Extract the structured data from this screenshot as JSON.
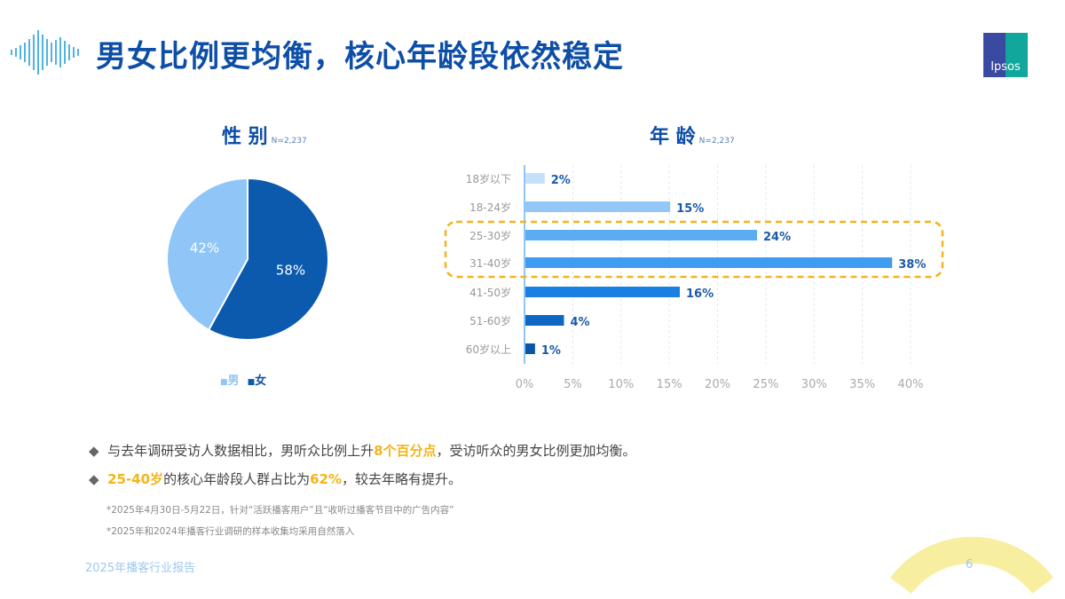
{
  "header": {
    "title": "男女比例更均衡，核心年龄段依然稳定",
    "logo_text": "Ipsos",
    "icon": "soundwave-icon"
  },
  "chart_data": [
    {
      "type": "pie",
      "title": "性 别",
      "note": "N=2,237",
      "categories": [
        "男",
        "女"
      ],
      "values": [
        42,
        58
      ],
      "labels": [
        "42%",
        "58%"
      ],
      "colors": [
        "#90c5f7",
        "#0b5aad"
      ],
      "legend": "bottom"
    },
    {
      "type": "bar",
      "orientation": "horizontal",
      "title": "年 龄",
      "note": "N=2,237",
      "categories": [
        "18岁以下",
        "18-24岁",
        "25-30岁",
        "31-40岁",
        "41-50岁",
        "51-60岁",
        "60岁以上"
      ],
      "values": [
        2,
        15,
        24,
        38,
        16,
        4,
        1
      ],
      "labels": [
        "2%",
        "15%",
        "24%",
        "38%",
        "16%",
        "4%",
        "1%"
      ],
      "colors": [
        "#c4e0fb",
        "#92c7f7",
        "#5aacf3",
        "#3f9cf0",
        "#1a7fe3",
        "#0f67c4",
        "#0b55a6"
      ],
      "xlim": [
        0,
        40
      ],
      "xticks": [
        "0%",
        "5%",
        "10%",
        "15%",
        "20%",
        "25%",
        "30%",
        "35%",
        "40%"
      ],
      "grid": true,
      "highlight": [
        "25-30岁",
        "31-40岁"
      ],
      "highlight_color": "#f4b41a"
    }
  ],
  "bullets": [
    {
      "pre": "与去年调研受访人数据相比，男听众比例上升",
      "hl": "8个百分点",
      "post": "，受访听众的男女比例更加均衡。"
    },
    {
      "hl": "25-40岁",
      "mid": "的核心年龄段人群占比为",
      "hl2": "62%",
      "post": "，较去年略有提升。"
    }
  ],
  "notes": [
    "*2025年4月30日-5月22日，针对“活跃播客用户”且“收听过播客节目中的广告内容”",
    "*2025年和2024年播客行业调研的样本收集均采用自然落入"
  ],
  "footer": {
    "text": "2025年播客行业报告",
    "page": "6"
  }
}
